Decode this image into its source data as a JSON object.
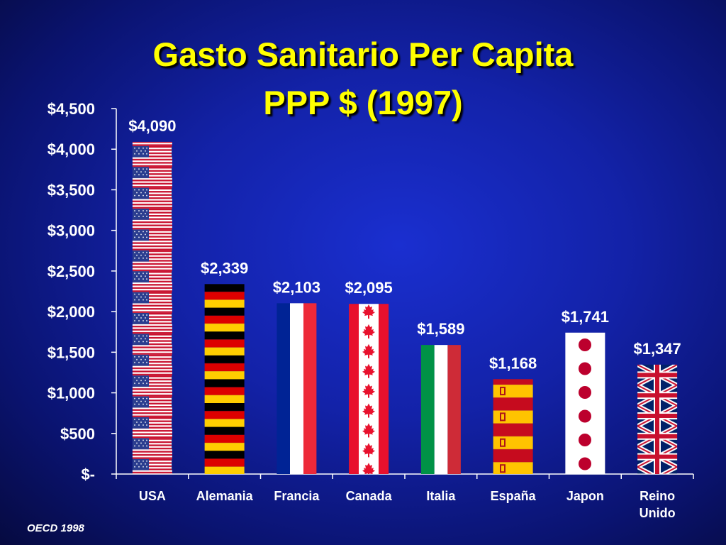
{
  "title_line1": "Gasto Sanitario Per Capita",
  "title_line2": "PPP $ (1997)",
  "source": "OECD 1998",
  "chart_data": {
    "type": "bar",
    "title": "Gasto Sanitario Per Capita PPP $ (1997)",
    "categories": [
      "USA",
      "Alemania",
      "Francia",
      "Canada",
      "Italia",
      "España",
      "Japon",
      "Reino Unido"
    ],
    "category_lines": [
      [
        "USA"
      ],
      [
        "Alemania"
      ],
      [
        "Francia"
      ],
      [
        "Canada"
      ],
      [
        "Italia"
      ],
      [
        "España"
      ],
      [
        "Japon"
      ],
      [
        "Reino",
        "Unido"
      ]
    ],
    "values": [
      4090,
      2339,
      2103,
      2095,
      1589,
      1168,
      1741,
      1347
    ],
    "value_labels": [
      "$4,090",
      "$2,339",
      "$2,103",
      "$2,095",
      "$1,589",
      "$1,168",
      "$1,741",
      "$1,347"
    ],
    "bar_fills": [
      "flag-usa",
      "flag-germany",
      "flag-france",
      "flag-canada",
      "flag-italy",
      "flag-spain",
      "flag-japan",
      "flag-uk"
    ],
    "ylim": [
      0,
      4500
    ],
    "yticks": [
      0,
      500,
      1000,
      1500,
      2000,
      2500,
      3000,
      3500,
      4000,
      4500
    ],
    "ytick_labels": [
      "$-",
      "$500",
      "$1,000",
      "$1,500",
      "$2,000",
      "$2,500",
      "$3,000",
      "$3,500",
      "$4,000",
      "$4,500"
    ],
    "xlabel": "",
    "ylabel": "",
    "grid": false,
    "legend": "none",
    "colors": {
      "axis": "#ffffff",
      "text": "#ffffff",
      "title": "#ffff00",
      "background": "#1322a8"
    }
  }
}
